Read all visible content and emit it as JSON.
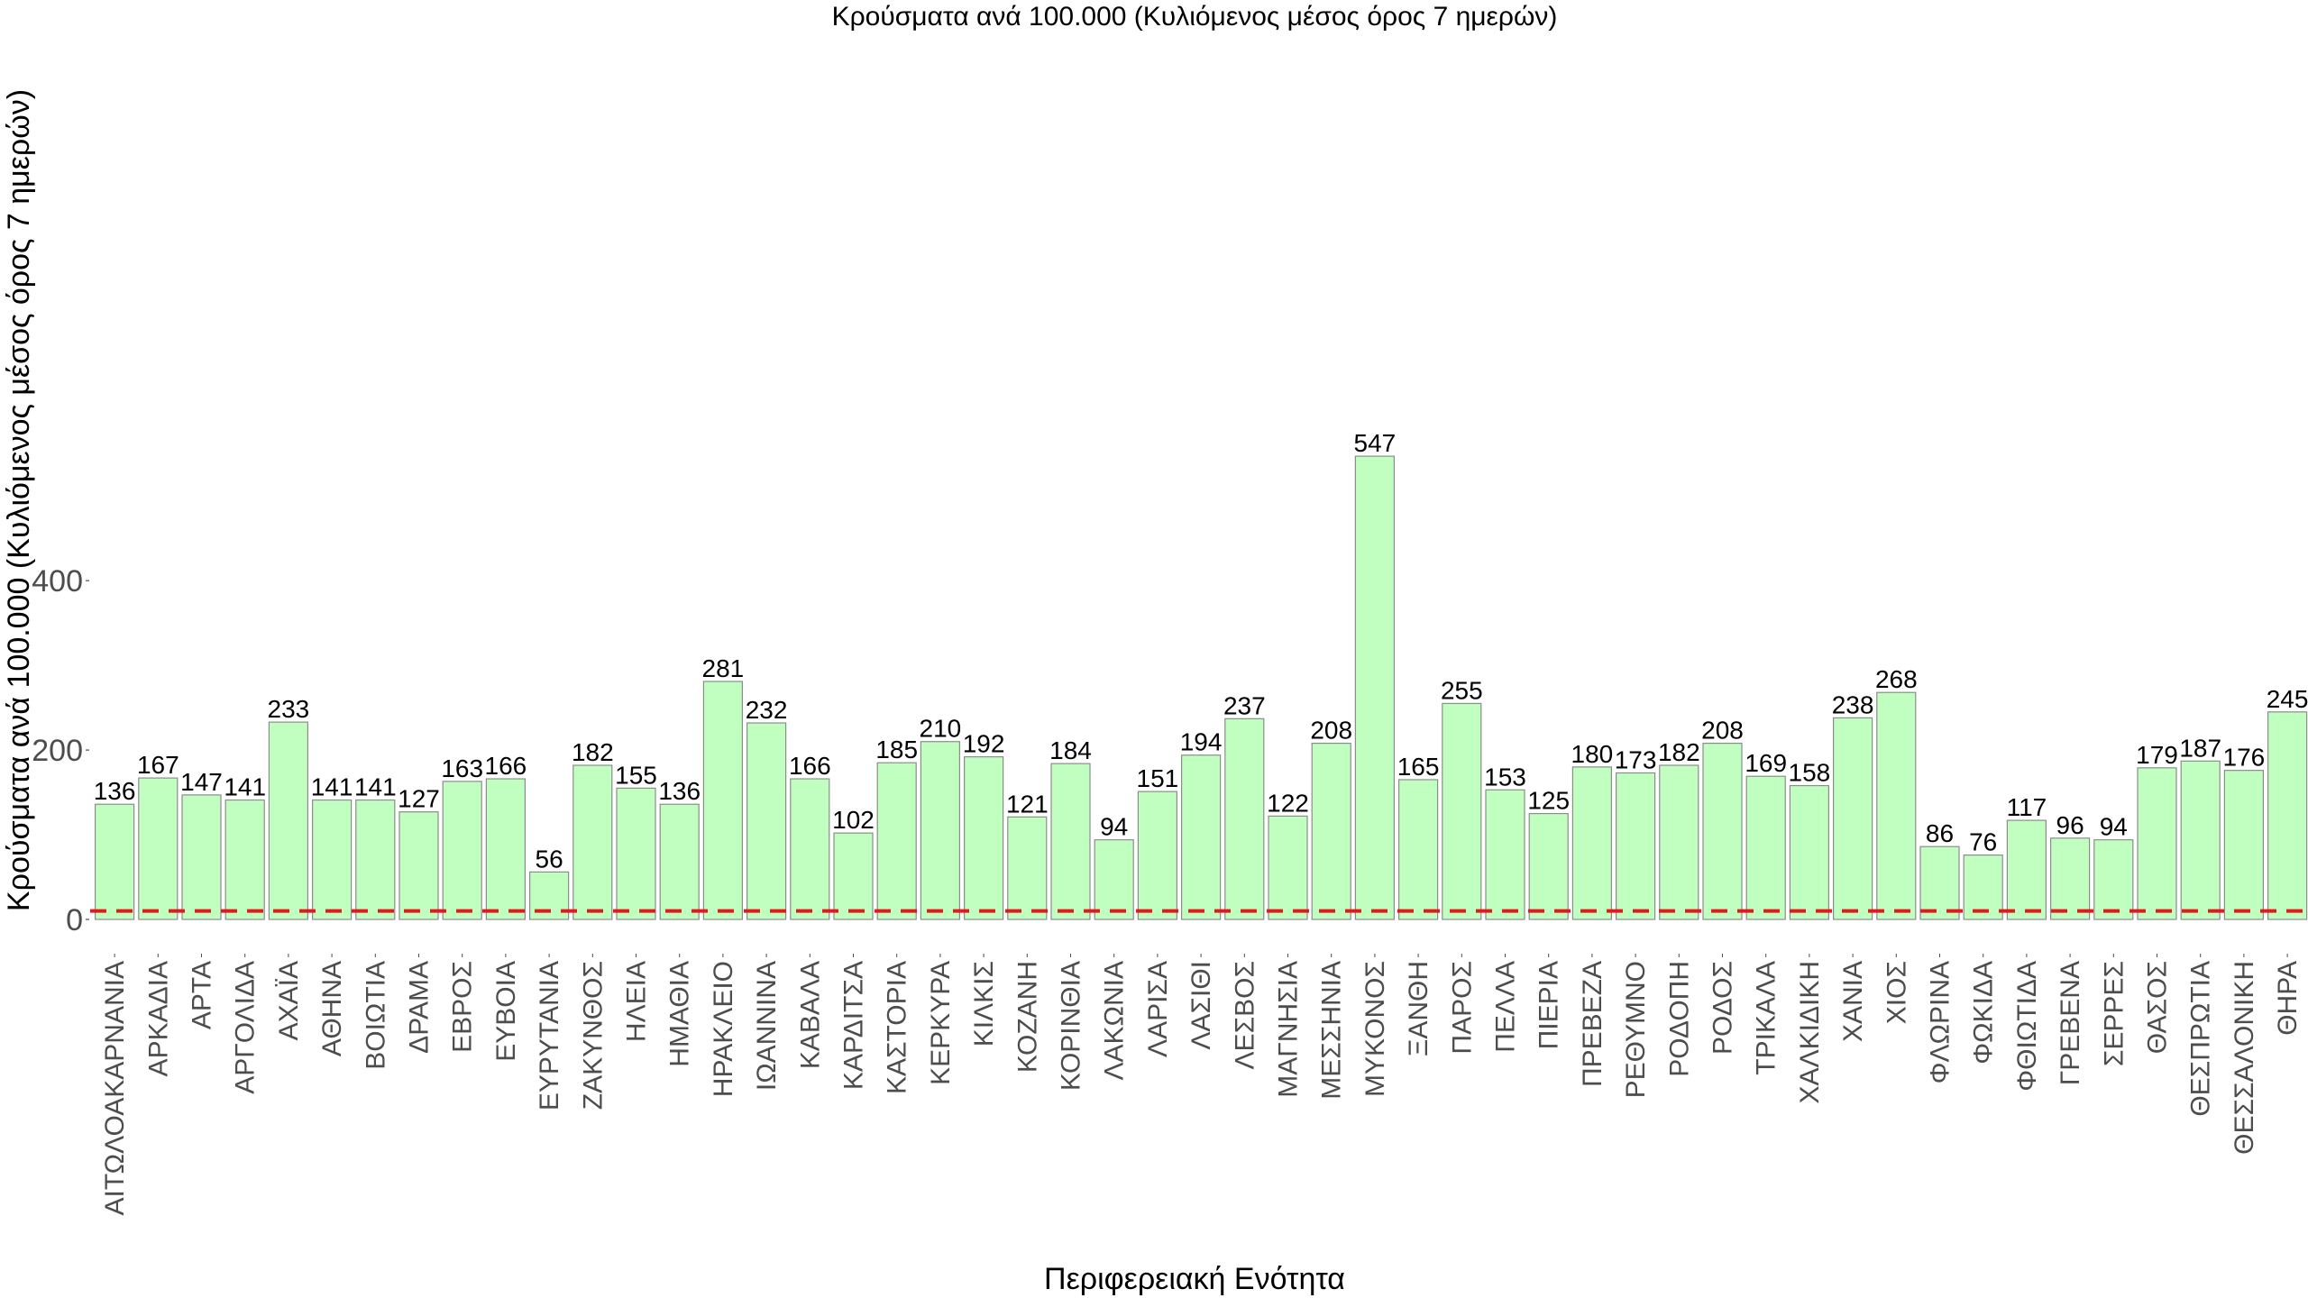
{
  "chart_data": {
    "type": "bar",
    "title": "Κρούσματα ανά 100.000 (Κυλιόμενος μέσος όρος 7 ημερών)",
    "xlabel": "Περιφερειακή Ενότητα",
    "ylabel": "Κρούσματα ανά 100.000 (Κυλιόμενος μέσος όρος 7 ημερών)",
    "ylim": [
      0,
      560
    ],
    "yticks": [
      0,
      200,
      400
    ],
    "threshold_line": {
      "value": 10,
      "color": "#e31a1c",
      "style": "dashed"
    },
    "bar_color": "#c1ffc1",
    "bar_edge_color": "#8c8c8c",
    "categories": [
      "ΑΙΤΩΛΟΑΚΑΡΝΑΝΙΑ",
      "ΑΡΚΑΔΙΑ",
      "ΑΡΤΑ",
      "ΑΡΓΟΛΙΔΑ",
      "ΑΧΑΪΑ",
      "ΑΘΗΝΑ",
      "ΒΟΙΩΤΙΑ",
      "ΔΡΑΜΑ",
      "ΕΒΡΟΣ",
      "ΕΥΒΟΙΑ",
      "ΕΥΡΥΤΑΝΙΑ",
      "ΖΑΚΥΝΘΟΣ",
      "ΗΛΕΙΑ",
      "ΗΜΑΘΙΑ",
      "ΗΡΑΚΛΕΙΟ",
      "ΙΩΑΝΝΙΝΑ",
      "ΚΑΒΑΛΑ",
      "ΚΑΡΔΙΤΣΑ",
      "ΚΑΣΤΟΡΙΑ",
      "ΚΕΡΚΥΡΑ",
      "ΚΙΛΚΙΣ",
      "ΚΟΖΑΝΗ",
      "ΚΟΡΙΝΘΙΑ",
      "ΛΑΚΩΝΙΑ",
      "ΛΑΡΙΣΑ",
      "ΛΑΣΙΘΙ",
      "ΛΕΣΒΟΣ",
      "ΜΑΓΝΗΣΙΑ",
      "ΜΕΣΣΗΝΙΑ",
      "ΜΥΚΟΝΟΣ",
      "ΞΑΝΘΗ",
      "ΠΑΡΟΣ",
      "ΠΕΛΛΑ",
      "ΠΙΕΡΙΑ",
      "ΠΡΕΒΕΖΑ",
      "ΡΕΘΥΜΝΟ",
      "ΡΟΔΟΠΗ",
      "ΡΟΔΟΣ",
      "ΤΡΙΚΑΛΑ",
      "ΧΑΛΚΙΔΙΚΗ",
      "ΧΑΝΙΑ",
      "ΧΙΟΣ",
      "ΦΛΩΡΙΝΑ",
      "ΦΩΚΙΔΑ",
      "ΦΘΙΩΤΙΔΑ",
      "ΓΡΕΒΕΝΑ",
      "ΣΕΡΡΕΣ",
      "ΘΑΣΟΣ",
      "ΘΕΣΠΡΩΤΙΑ",
      "ΘΕΣΣΑΛΟΝΙΚΗ",
      "ΘΗΡΑ"
    ],
    "values": [
      136,
      167,
      147,
      141,
      233,
      141,
      141,
      127,
      163,
      166,
      56,
      182,
      155,
      136,
      281,
      232,
      166,
      102,
      185,
      210,
      192,
      121,
      184,
      94,
      151,
      194,
      237,
      122,
      208,
      547,
      165,
      255,
      153,
      125,
      180,
      173,
      182,
      208,
      169,
      158,
      238,
      268,
      86,
      76,
      117,
      96,
      94,
      179,
      187,
      176,
      245
    ]
  }
}
